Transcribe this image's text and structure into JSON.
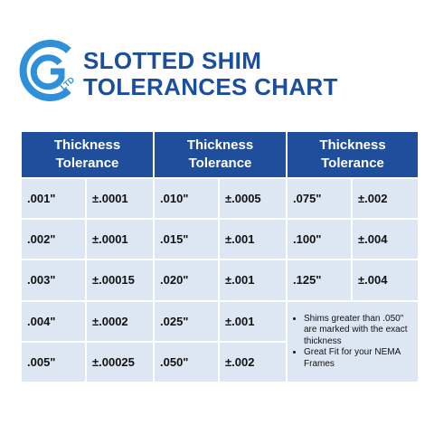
{
  "logo": {
    "text": "LTD"
  },
  "header": {
    "title_line1": "SLOTTED SHIM",
    "title_line2": "TOLERANCES CHART"
  },
  "table": {
    "headers": [
      "Thickness Tolerance",
      "Thickness Tolerance",
      "Thickness Tolerance"
    ],
    "groups": [
      [
        [
          ".001\"",
          "±.0001"
        ],
        [
          ".002\"",
          "±.0001"
        ],
        [
          ".003\"",
          "±.00015"
        ],
        [
          ".004\"",
          "±.0002"
        ],
        [
          ".005\"",
          "±.00025"
        ]
      ],
      [
        [
          ".010\"",
          "±.0005"
        ],
        [
          ".015\"",
          "±.001"
        ],
        [
          ".020\"",
          "±.001"
        ],
        [
          ".025\"",
          "±.001"
        ],
        [
          ".050\"",
          "±.002"
        ]
      ],
      [
        [
          ".075\"",
          "±.002"
        ],
        [
          ".100\"",
          "±.004"
        ],
        [
          ".125\"",
          "±.004"
        ]
      ]
    ],
    "notes": [
      "Shims greater than .050\" are marked with the exact thickness",
      "Great Fit for your NEMA Frames"
    ]
  }
}
